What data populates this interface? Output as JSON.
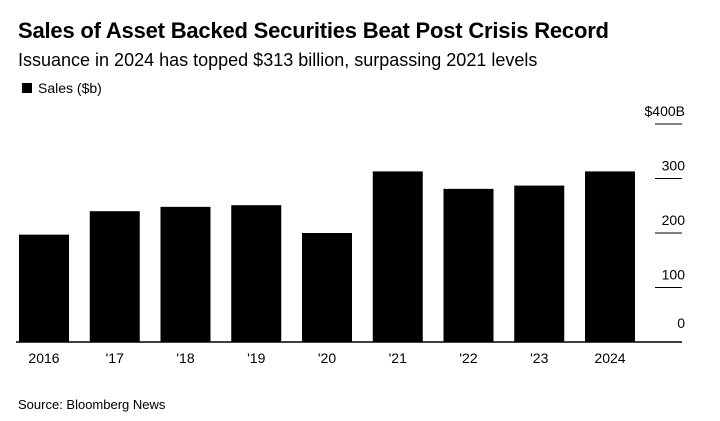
{
  "title": "Sales of Asset Backed Securities Beat Post Crisis Record",
  "subtitle": "Issuance in 2024 has topped $313 billion, surpassing 2021 levels",
  "source": "Source: Bloomberg News",
  "chart_data": {
    "type": "bar",
    "categories": [
      "2016",
      "'17",
      "'18",
      "'19",
      "'20",
      "'21",
      "'22",
      "'23",
      "2024"
    ],
    "series": [
      {
        "name": "Sales ($b)",
        "values": [
          197,
          240,
          248,
          251,
          200,
          313,
          281,
          287,
          313
        ]
      }
    ],
    "ylim": [
      0,
      400
    ],
    "yticks": [
      0,
      100,
      200,
      300,
      400
    ],
    "ytick_labels": [
      "0",
      "100",
      "200",
      "300",
      "$400B"
    ],
    "grid": true,
    "legend_position": "top-left",
    "colors": {
      "bar": "#000000",
      "grid": "#000000",
      "text": "#000000"
    }
  }
}
